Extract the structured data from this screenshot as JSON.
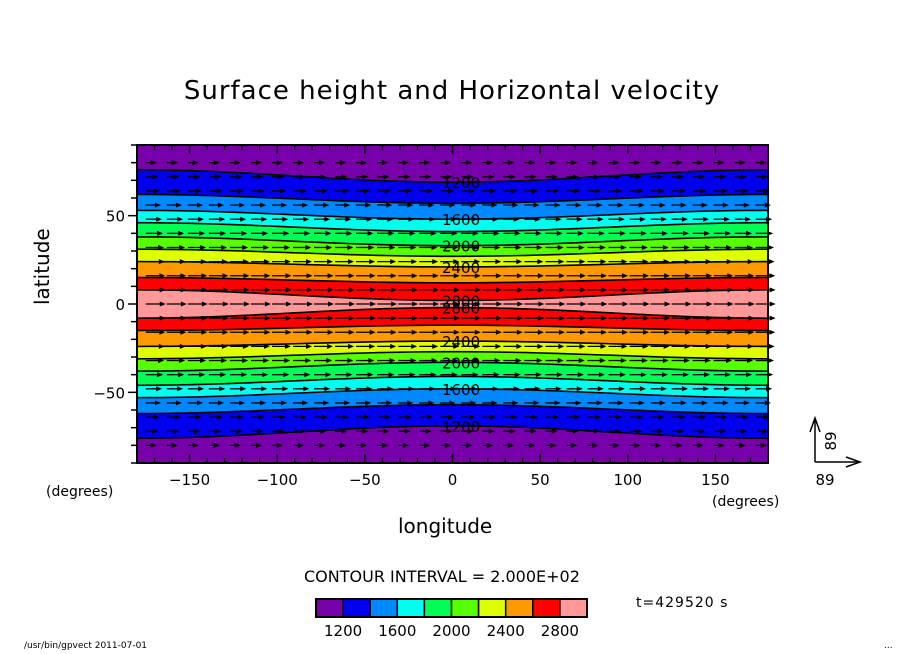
{
  "chart_data": {
    "type": "contour",
    "title": "Surface height and Horizontal velocity",
    "xlabel": "longitude",
    "ylabel": "latitude",
    "x_units": "(degrees)",
    "y_units": "(degrees)",
    "xlim": [
      -180,
      180
    ],
    "ylim": [
      -90,
      90
    ],
    "xticks": [
      -150,
      -100,
      -50,
      0,
      50,
      100,
      150
    ],
    "yticks": [
      50,
      0,
      -50
    ],
    "contour_interval_text": "CONTOUR INTERVAL = 2.000E+02",
    "contour_levels": [
      1200,
      1400,
      1600,
      1800,
      2000,
      2200,
      2400,
      2600,
      2800
    ],
    "contour_labels": {
      "north": [
        "1200",
        "1600",
        "2000",
        "2400",
        "2800"
      ],
      "south": [
        "2800",
        "2400",
        "2000",
        "1600",
        "1200"
      ]
    },
    "level_boundaries_lat_at_lon_minus180": [
      76,
      62,
      53,
      46,
      38,
      31,
      24,
      15,
      8
    ],
    "level_boundaries_lat_at_lon_0": [
      69,
      57,
      48,
      41,
      33,
      27,
      21,
      12,
      2
    ],
    "colorbar": {
      "colors": [
        "#7700aa",
        "#0000ee",
        "#0088ff",
        "#00ffee",
        "#00ff55",
        "#55ff00",
        "#ddff00",
        "#ff9900",
        "#ff0000",
        "#ff9999"
      ],
      "labels": [
        "1200",
        "1600",
        "2000",
        "2400",
        "2800"
      ]
    },
    "vector_reference": {
      "x_label": "89",
      "y_label": "89"
    },
    "vector_direction": "eastward"
  },
  "time_label": "t=429520 s",
  "footer": {
    "left": "/usr/bin/gpvect  2011-07-01",
    "right": "..."
  }
}
